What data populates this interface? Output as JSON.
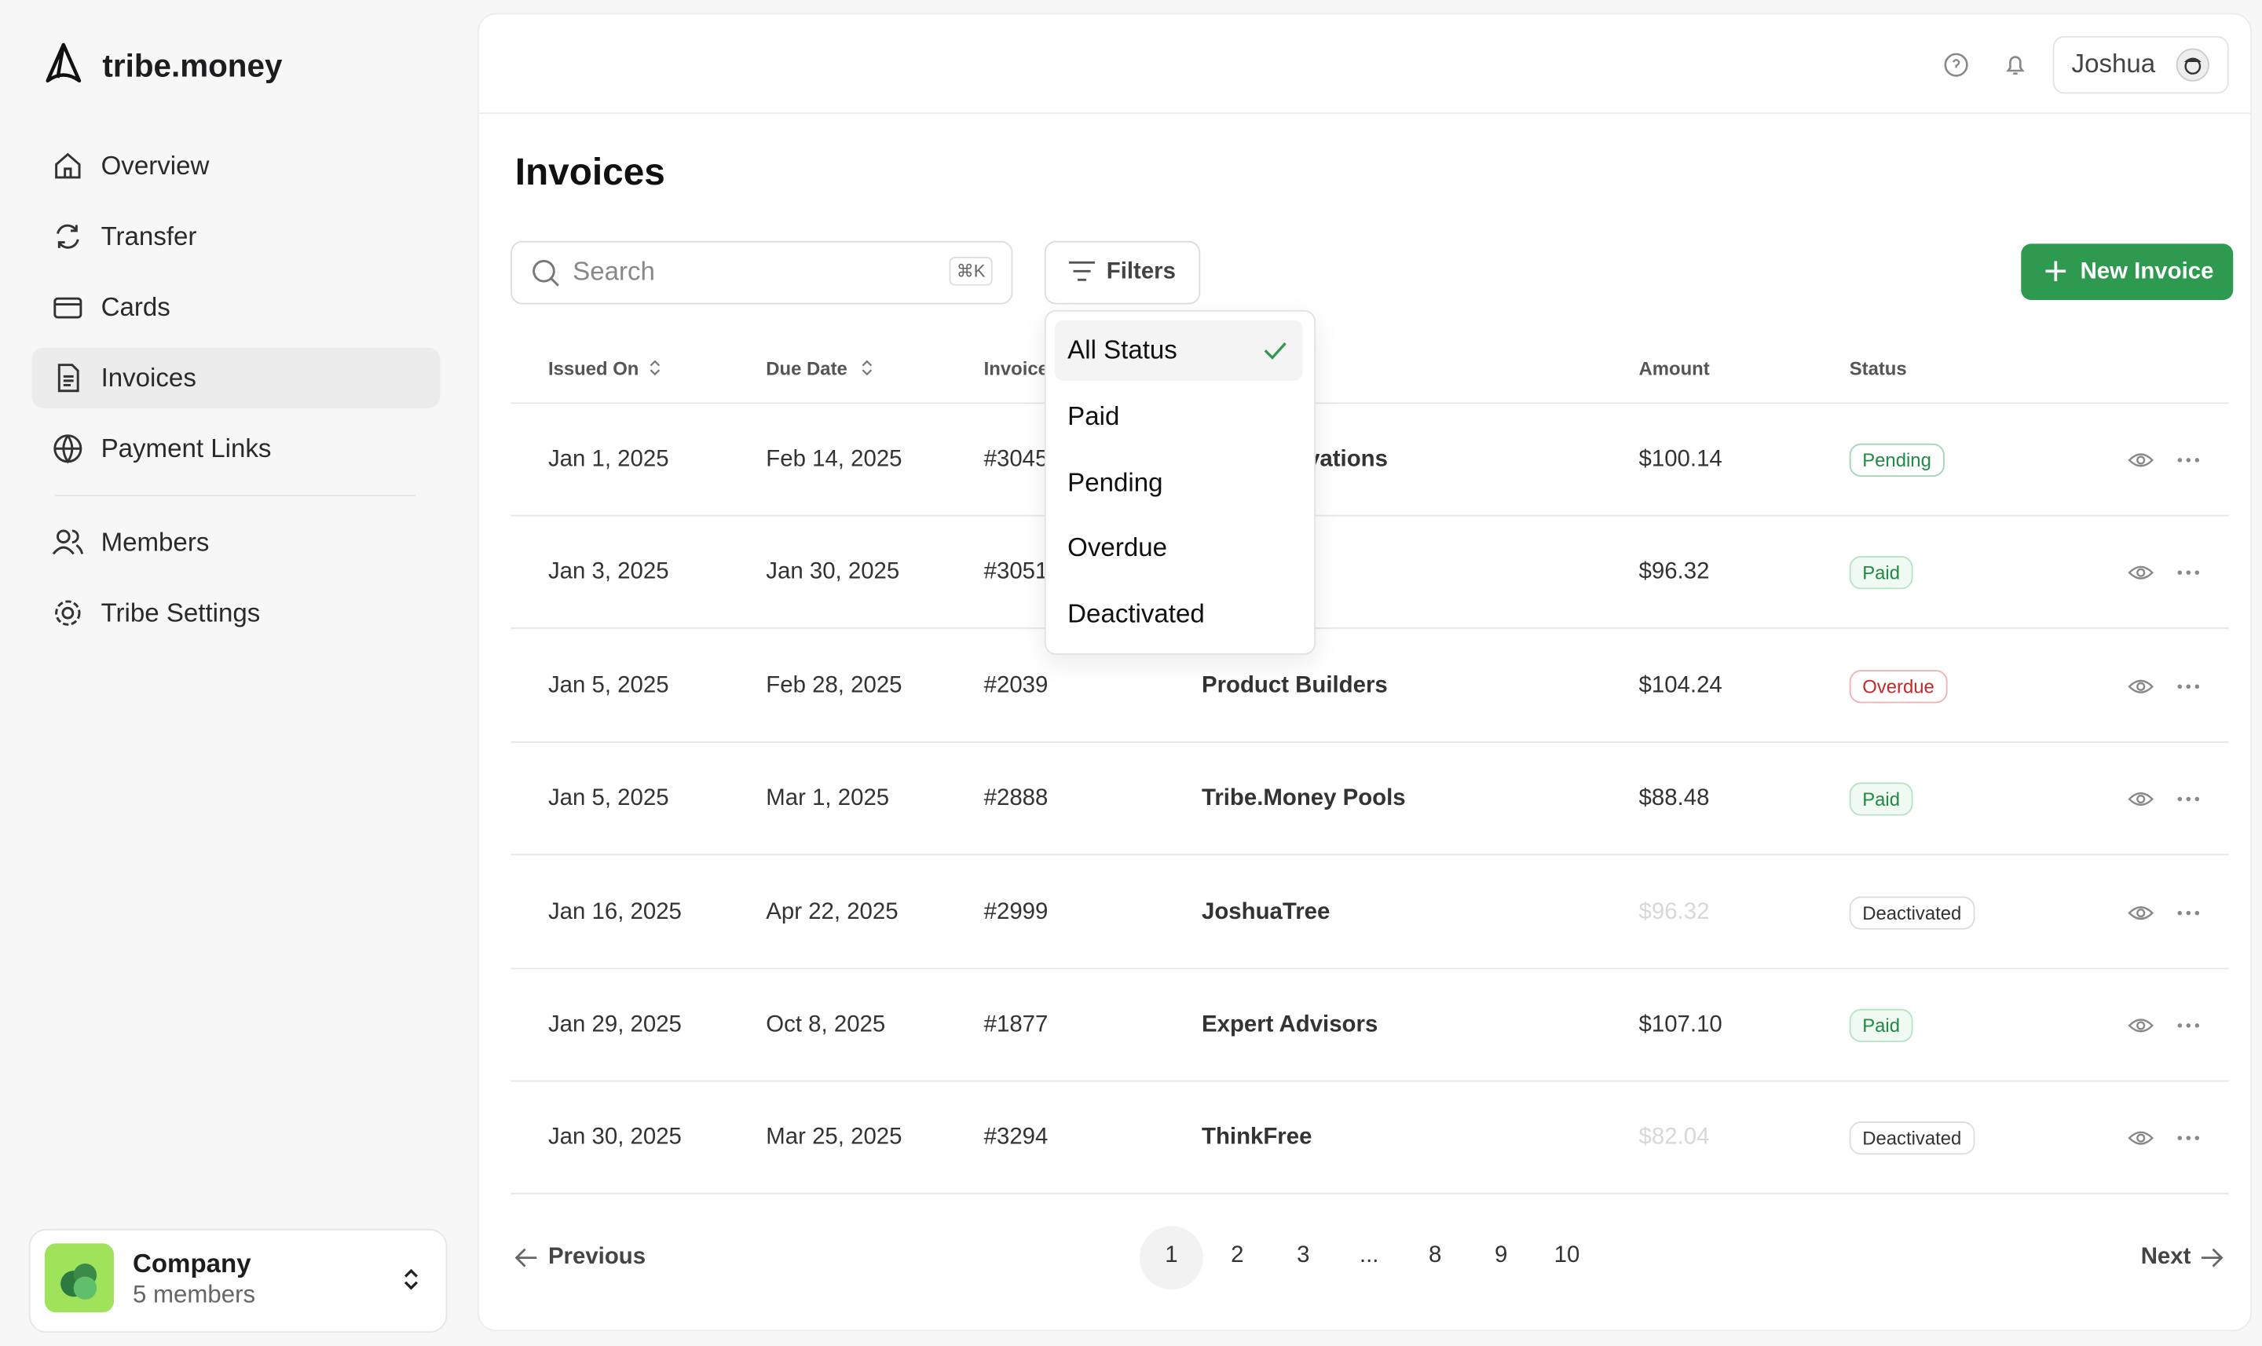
{
  "brand": "tribe.money",
  "nav": [
    "Overview",
    "Transfer",
    "Cards",
    "Invoices",
    "Payment Links"
  ],
  "nav_secondary": [
    "Members",
    "Tribe Settings"
  ],
  "workspace": {
    "name": "Company",
    "members": "5 members"
  },
  "header": {
    "user": "Joshua"
  },
  "page": {
    "title": "Invoices",
    "search_placeholder": "Search",
    "search_shortcut": "⌘K",
    "filters_button": "Filters",
    "new_button": "New Invoice"
  },
  "filter_menu": {
    "options": [
      "All Status",
      "Paid",
      "Pending",
      "Overdue",
      "Deactivated"
    ]
  },
  "table": {
    "columns": [
      "Issued On",
      "Due Date",
      "Invoice",
      "Amount",
      "Status"
    ],
    "rows": [
      {
        "issued": "Jan 1, 2025",
        "due": "Feb 14, 2025",
        "invoice": "#3045",
        "client": "vations",
        "amount": "$100.14",
        "status": "Pending"
      },
      {
        "issued": "Jan 3, 2025",
        "due": "Jan 30, 2025",
        "invoice": "#3051",
        "amount": "$96.32",
        "status": "Paid"
      },
      {
        "issued": "Jan 5, 2025",
        "due": "Feb 28, 2025",
        "invoice": "#2039",
        "client": "Product Builders",
        "amount": "$104.24",
        "status": "Overdue"
      },
      {
        "issued": "Jan 5, 2025",
        "due": "Mar 1, 2025",
        "invoice": "#2888",
        "client": "Tribe.Money Pools",
        "amount": "$88.48",
        "status": "Paid"
      },
      {
        "issued": "Jan 16, 2025",
        "due": "Apr 22, 2025",
        "invoice": "#2999",
        "client": "JoshuaTree",
        "amount": "$96.32",
        "status": "Deactivated"
      },
      {
        "issued": "Jan 29, 2025",
        "due": "Oct 8, 2025",
        "invoice": "#1877",
        "client": "Expert Advisors",
        "amount": "$107.10",
        "status": "Paid"
      },
      {
        "issued": "Jan 30, 2025",
        "due": "Mar 25, 2025",
        "invoice": "#3294",
        "client": "ThinkFree",
        "amount": "$82.04",
        "status": "Deactivated"
      }
    ]
  },
  "pagination": {
    "previous": "Previous",
    "next": "Next",
    "pages": [
      "1",
      "2",
      "3",
      "...",
      "8",
      "9",
      "10"
    ]
  }
}
